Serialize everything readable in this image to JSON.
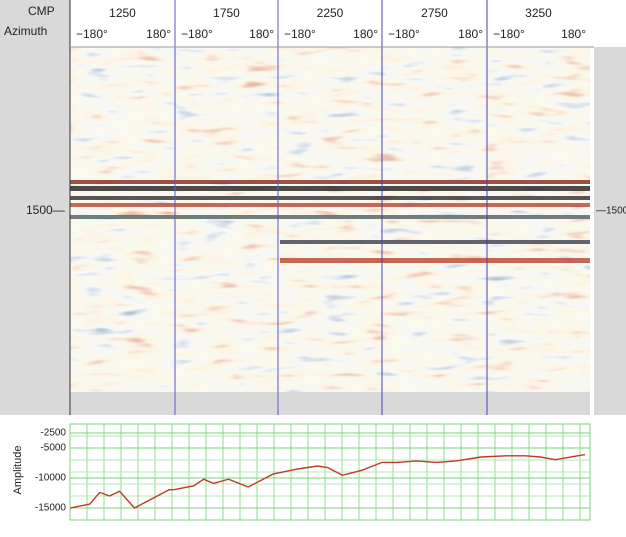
{
  "header": {
    "row_labels": [
      "CMP",
      "Azimuth"
    ],
    "panels": [
      {
        "cmp": "1250",
        "az_min": "−180°",
        "az_max": "180°"
      },
      {
        "cmp": "1750",
        "az_min": "−180°",
        "az_max": "180°"
      },
      {
        "cmp": "2250",
        "az_min": "−180°",
        "az_max": "180°"
      },
      {
        "cmp": "2750",
        "az_min": "−180°",
        "az_max": "180°"
      },
      {
        "cmp": "3250",
        "az_min": "−180°",
        "az_max": "180°"
      }
    ]
  },
  "depth_marker": {
    "left": "1500—",
    "right": "—1500"
  },
  "chart_data": {
    "type": "line",
    "y_label": "Amplitude",
    "x": [
      1000,
      1095,
      1143,
      1190,
      1238,
      1310,
      1381,
      1476,
      1500,
      1595,
      1643,
      1690,
      1762,
      1857,
      1976,
      2095,
      2190,
      2238,
      2310,
      2405,
      2500,
      2571,
      2667,
      2762,
      2857,
      2976,
      3095,
      3190,
      3262,
      3333,
      3476
    ],
    "series": [
      {
        "name": "Amplitude",
        "color": "#c0392b",
        "values": [
          -15000,
          -14350,
          -12400,
          -13000,
          -12200,
          -15000,
          -13700,
          -11950,
          -11950,
          -11300,
          -10200,
          -10900,
          -10200,
          -11500,
          -9350,
          -8500,
          -8000,
          -8250,
          -9550,
          -8700,
          -7400,
          -7400,
          -7150,
          -7400,
          -7150,
          -6500,
          -6300,
          -6300,
          -6500,
          -6950,
          -6100
        ]
      }
    ],
    "xlim": [
      1000,
      3500
    ],
    "ylim": [
      -17000,
      -1000
    ],
    "yticks": [
      -2500,
      -5000,
      -10000,
      -15000
    ],
    "grid": true
  }
}
